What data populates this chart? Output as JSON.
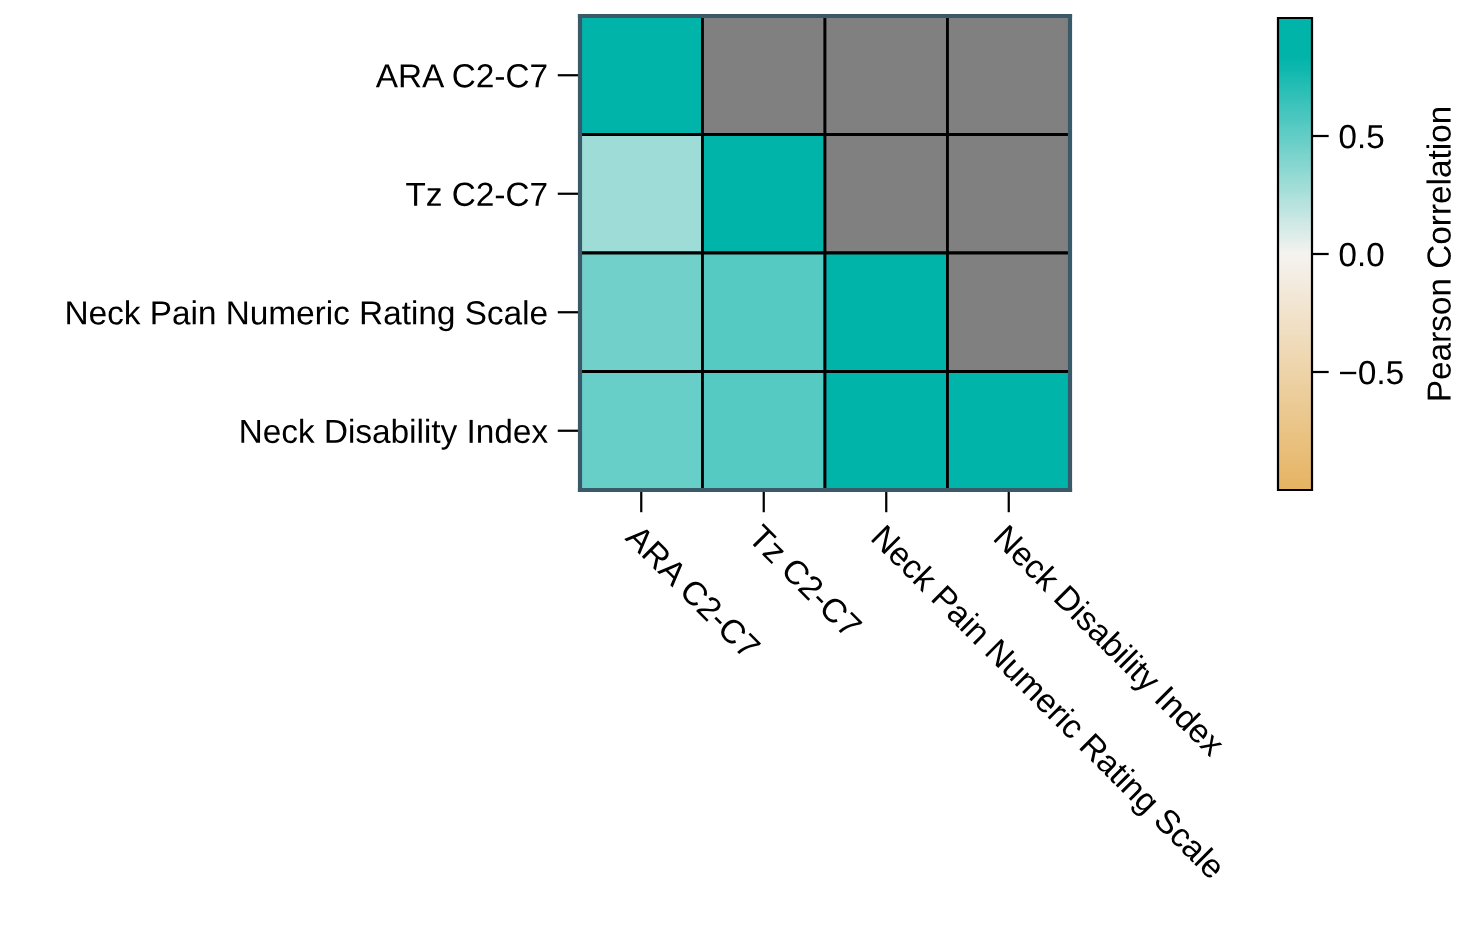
{
  "chart_data": {
    "type": "heatmap",
    "categories": [
      "ARA C2-C7",
      "Tz C2-C7",
      "Neck Pain Numeric Rating Scale",
      "Neck Disability Index"
    ],
    "y_categories": [
      "ARA C2-C7",
      "Tz C2-C7",
      "Neck Pain Numeric Rating Scale",
      "Neck Disability Index"
    ],
    "cells": [
      [
        1.0,
        null,
        null,
        null
      ],
      [
        0.3,
        1.0,
        null,
        null
      ],
      [
        0.45,
        0.55,
        1.0,
        null
      ],
      [
        0.48,
        0.55,
        0.9,
        1.0
      ]
    ],
    "clim": [
      -1.0,
      1.0
    ],
    "cticks": [
      {
        "value": 0.5,
        "label": "0.5"
      },
      {
        "value": 0.0,
        "label": "0.0"
      },
      {
        "value": -0.5,
        "label": "−0.5"
      }
    ],
    "clabel": "Pearson Correlation"
  }
}
